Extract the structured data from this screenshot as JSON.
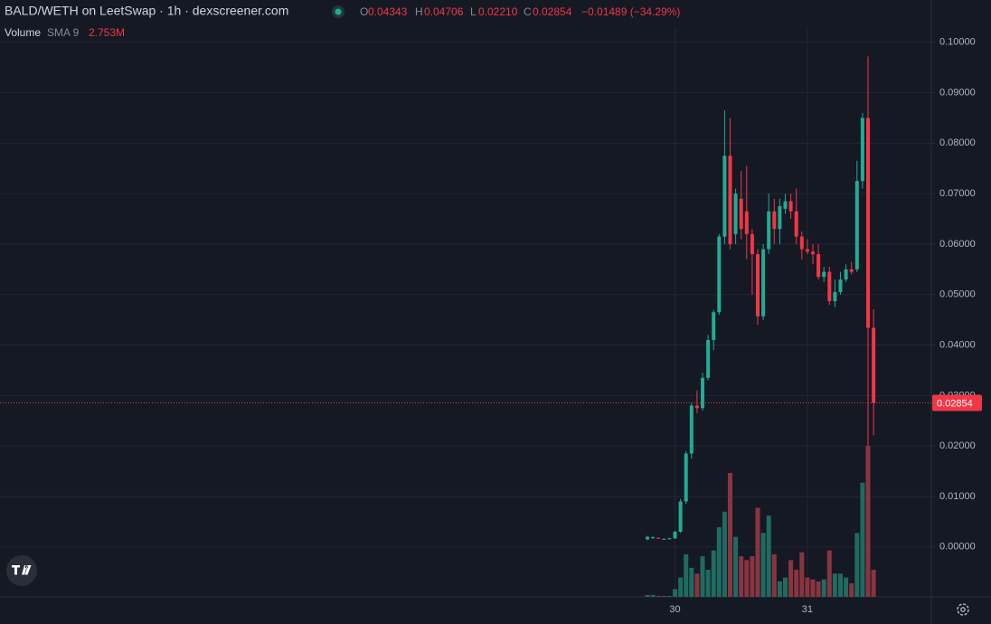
{
  "chart_data": {
    "type": "candlestick",
    "title": "BALD/WETH on LeetSwap · 1h · dexscreener.com",
    "header": {
      "O": "0.04343",
      "H": "0.04706",
      "L": "0.02210",
      "C": "0.02854",
      "change": "−0.01489 (−34.29%)"
    },
    "volume_label": "Volume",
    "volume_indicator": "SMA 9",
    "volume_sma": "2.753M",
    "categories": [
      null,
      null,
      null,
      null,
      null,
      "30",
      null,
      null,
      null,
      null,
      null,
      null,
      null,
      null,
      null,
      null,
      null,
      null,
      null,
      null,
      null,
      null,
      null,
      null,
      null,
      null,
      null,
      null,
      null,
      "31",
      null,
      null,
      null,
      null,
      null,
      null,
      null,
      null,
      null,
      null,
      null,
      null
    ],
    "open": [
      0.0015,
      0.0017,
      0.0018,
      0.0016,
      0.0016,
      0.0017,
      0.003,
      0.009,
      0.0185,
      0.028,
      0.0275,
      0.0335,
      0.041,
      0.0465,
      0.0615,
      0.0775,
      0.062,
      0.069,
      0.0665,
      0.062,
      0.058,
      0.0457,
      0.059,
      0.0665,
      0.063,
      0.067,
      0.0685,
      0.0665,
      0.0615,
      0.059,
      0.0585,
      0.058,
      0.0535,
      0.0545,
      0.0487,
      0.0505,
      0.053,
      0.055,
      0.055,
      0.0725,
      0.085,
      0.04343
    ],
    "high": [
      0.0022,
      0.0021,
      0.0019,
      0.0017,
      0.0018,
      0.0032,
      0.0095,
      0.019,
      0.0285,
      0.031,
      0.0345,
      0.042,
      0.047,
      0.062,
      0.0865,
      0.085,
      0.071,
      0.0745,
      0.0755,
      0.063,
      0.059,
      0.06,
      0.07,
      0.069,
      0.069,
      0.07,
      0.07,
      0.071,
      0.0625,
      0.061,
      0.06,
      0.06,
      0.0555,
      0.0555,
      0.053,
      0.0545,
      0.056,
      0.0565,
      0.0765,
      0.086,
      0.0972,
      0.04706
    ],
    "low": [
      0.0013,
      0.0016,
      0.0016,
      0.0015,
      0.0015,
      0.0016,
      0.0028,
      0.0085,
      0.0175,
      0.0265,
      0.027,
      0.033,
      0.039,
      0.046,
      0.06,
      0.059,
      0.06,
      0.061,
      0.057,
      0.05,
      0.044,
      0.045,
      0.058,
      0.06,
      0.06,
      0.066,
      0.065,
      0.06,
      0.057,
      0.058,
      0.056,
      0.053,
      0.0525,
      0.048,
      0.0475,
      0.05,
      0.0525,
      0.054,
      0.0545,
      0.071,
      0.02,
      0.0221
    ],
    "close": [
      0.002,
      0.0019,
      0.0017,
      0.0016,
      0.0017,
      0.003,
      0.009,
      0.0185,
      0.028,
      0.0275,
      0.0335,
      0.041,
      0.0465,
      0.0615,
      0.0775,
      0.06,
      0.07,
      0.063,
      0.062,
      0.058,
      0.0457,
      0.059,
      0.0665,
      0.063,
      0.0675,
      0.0685,
      0.0665,
      0.0615,
      0.059,
      0.0585,
      0.058,
      0.0535,
      0.0545,
      0.0487,
      0.0505,
      0.053,
      0.055,
      0.0545,
      0.0725,
      0.085,
      0.04343,
      0.02854
    ],
    "volume": [
      0.1,
      0.1,
      0.05,
      0.05,
      0.05,
      0.4,
      1.0,
      2.2,
      1.5,
      1.2,
      2.1,
      1.4,
      2.4,
      3.6,
      4.4,
      6.4,
      3.1,
      2.1,
      1.9,
      2.1,
      4.6,
      3.3,
      4.2,
      2.2,
      0.8,
      1.0,
      1.9,
      1.4,
      2.3,
      1.0,
      0.9,
      0.8,
      0.9,
      2.4,
      1.2,
      1.2,
      1.0,
      0.7,
      3.3,
      5.9,
      7.8,
      1.4
    ],
    "up_color": "#22ab94",
    "down_color": "#f23645",
    "up_volume_color": "#1f6b60",
    "down_volume_color": "#8a3440",
    "ylim": [
      -0.0099,
      0.103
    ],
    "yticks": [
      {
        "value": 0,
        "label": "0.00000"
      },
      {
        "value": 0.01,
        "label": "0.01000"
      },
      {
        "value": 0.02,
        "label": "0.02000"
      },
      {
        "value": 0.03,
        "label": "0.03000"
      },
      {
        "value": 0.04,
        "label": "0.04000"
      },
      {
        "value": 0.05,
        "label": "0.05000"
      },
      {
        "value": 0.06,
        "label": "0.06000"
      },
      {
        "value": 0.07,
        "label": "0.07000"
      },
      {
        "value": 0.08,
        "label": "0.08000"
      },
      {
        "value": 0.09,
        "label": "0.09000"
      },
      {
        "value": 0.1,
        "label": "0.10000"
      }
    ],
    "grid": true
  }
}
